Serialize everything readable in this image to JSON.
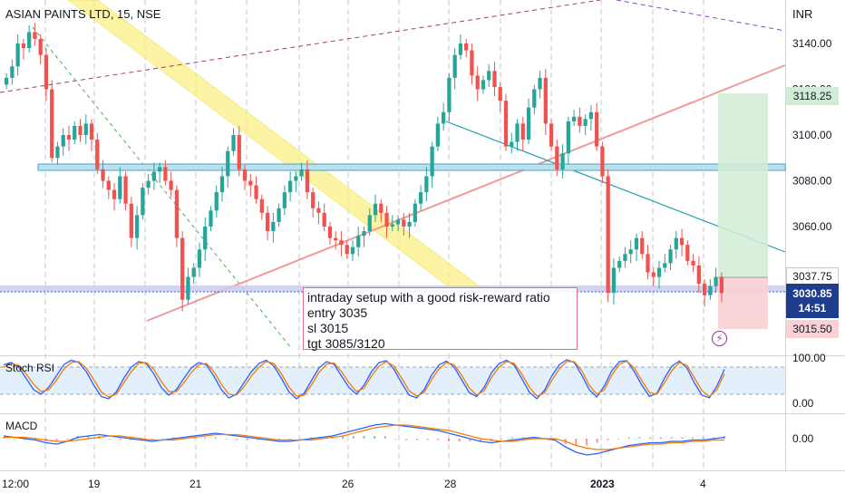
{
  "header": {
    "symbol": "ASIAN PAINTS LTD, 15, NSE",
    "currency": "INR"
  },
  "annotation_note": {
    "lines": [
      "intraday setup with a good risk-reward ratio",
      "entry 3035",
      "sl 3015",
      "tgt 3085/3120"
    ]
  },
  "position_tool": {
    "target_label": "3118.25",
    "entry_label": "3037.75",
    "last_price_label": "3030.85",
    "countdown_label": "14:51",
    "stop_label": "3015.50",
    "target_color": "#d1ecd6",
    "stop_color": "#f9d0d4",
    "last_price_color": "#1e3d8f"
  },
  "alert_icon": "lightning-icon",
  "chart_data": [
    {
      "type": "candlestick",
      "title": "ASIAN PAINTS LTD, 15, NSE",
      "ylabel": "INR",
      "ylim": [
        3002,
        3152
      ],
      "yticks": [
        3140,
        3120,
        3100,
        3080,
        3060
      ],
      "ytick_labels": [
        "3140.00",
        "3120.00",
        "3100.00",
        "3080.00",
        "3060.00"
      ],
      "xticks": [
        "12:00",
        "19",
        "21",
        "26",
        "28",
        "2023",
        "4"
      ],
      "grid": "vertical dashed",
      "series": [
        {
          "name": "",
          "close": [
            3125,
            3130,
            3140,
            3138,
            3145,
            3142,
            3135,
            3120,
            3090,
            3095,
            3100,
            3098,
            3104,
            3100,
            3105,
            3098,
            3085,
            3080,
            3076,
            3072,
            3082,
            3070,
            3055,
            3065,
            3077,
            3080,
            3084,
            3086,
            3080,
            3076,
            3055,
            3028,
            3038,
            3042,
            3050,
            3060,
            3067,
            3075,
            3082,
            3093,
            3100,
            3085,
            3080,
            3078,
            3072,
            3066,
            3058,
            3062,
            3068,
            3075,
            3080,
            3082,
            3085,
            3075,
            3068,
            3066,
            3060,
            3055,
            3054,
            3052,
            3048,
            3051,
            3056,
            3058,
            3065,
            3070,
            3066,
            3060,
            3061,
            3063,
            3060,
            3062,
            3070,
            3075,
            3082,
            3095,
            3105,
            3110,
            3125,
            3135,
            3140,
            3137,
            3126,
            3120,
            3124,
            3128,
            3121,
            3115,
            3095,
            3097,
            3105,
            3098,
            3112,
            3120,
            3125,
            3105,
            3095,
            3085,
            3092,
            3106,
            3108,
            3104,
            3107,
            3110,
            3095,
            3082,
            3031,
            3042,
            3045,
            3048,
            3050,
            3055,
            3048,
            3040,
            3038,
            3042,
            3044,
            3050,
            3055,
            3052,
            3045,
            3043,
            3035,
            3030,
            3034,
            3038,
            3031
          ],
          "high": 3148,
          "low": 3020
        }
      ],
      "levels": [
        {
          "name": "support-zone",
          "values": [
            3029,
            3032
          ]
        },
        {
          "name": "resistance-zone",
          "values": [
            3084,
            3086
          ]
        }
      ],
      "position": {
        "entry": 3037.75,
        "target": 3118.25,
        "stop": 3015.5,
        "last": 3030.85
      }
    },
    {
      "type": "line",
      "title": "Stoch RSI",
      "ylim": [
        0,
        100
      ],
      "yticks": [
        100,
        0
      ],
      "ytick_labels": [
        "100.00",
        "0.00"
      ],
      "band": [
        20,
        80
      ],
      "series": [
        {
          "name": "",
          "color": "#2962ff",
          "values": [
            85,
            90,
            80,
            55,
            30,
            20,
            35,
            60,
            85,
            95,
            90,
            70,
            40,
            15,
            10,
            25,
            55,
            80,
            92,
            88,
            65,
            35,
            18,
            30,
            55,
            78,
            90,
            85,
            60,
            30,
            12,
            20,
            45,
            70,
            88,
            95,
            82,
            55,
            25,
            10,
            22,
            50,
            78,
            92,
            86,
            60,
            35,
            20,
            40,
            70,
            90,
            94,
            75,
            45,
            18,
            12,
            30,
            62,
            85,
            93,
            80,
            52,
            24,
            15,
            35,
            68,
            88,
            95,
            84,
            55,
            25,
            10,
            28,
            60,
            85,
            96,
            90,
            62,
            30,
            14,
            38,
            72,
            92,
            94,
            70,
            40,
            15,
            22,
            55,
            82,
            93,
            78,
            45,
            18,
            12,
            38,
            75
          ]
        },
        {
          "name": "",
          "color": "#f57c00",
          "values": [
            80,
            87,
            84,
            65,
            42,
            26,
            30,
            50,
            75,
            90,
            92,
            78,
            52,
            25,
            14,
            20,
            45,
            70,
            88,
            90,
            75,
            48,
            26,
            26,
            45,
            68,
            85,
            88,
            70,
            42,
            20,
            18,
            36,
            60,
            80,
            92,
            88,
            65,
            36,
            16,
            18,
            40,
            68,
            86,
            89,
            70,
            45,
            26,
            33,
            60,
            82,
            92,
            82,
            56,
            28,
            16,
            24,
            52,
            76,
            90,
            85,
            62,
            34,
            18,
            28,
            58,
            80,
            92,
            88,
            65,
            36,
            16,
            22,
            50,
            76,
            92,
            92,
            72,
            40,
            20,
            30,
            62,
            86,
            93,
            78,
            50,
            24,
            20,
            45,
            72,
            90,
            84,
            56,
            28,
            15,
            30,
            65
          ]
        }
      ]
    },
    {
      "type": "line",
      "title": "MACD",
      "yticks": [
        0
      ],
      "ytick_labels": [
        "0.00"
      ],
      "series": [
        {
          "name": "",
          "color": "#2962ff",
          "values": [
            2,
            1,
            0,
            -1,
            -3,
            -4,
            -2,
            1,
            2,
            3,
            2,
            1,
            0,
            -1,
            -2,
            -1,
            0,
            1,
            2,
            3,
            4,
            3,
            2,
            1,
            0,
            -1,
            -2,
            -2,
            -1,
            0,
            1,
            2,
            4,
            6,
            8,
            10,
            11,
            10,
            9,
            8,
            7,
            6,
            4,
            2,
            0,
            -2,
            -3,
            -2,
            -1,
            0,
            1,
            0,
            -1,
            -6,
            -10,
            -12,
            -11,
            -9,
            -7,
            -5,
            -4,
            -3,
            -3,
            -2,
            -2,
            -1,
            -1,
            0,
            1
          ]
        },
        {
          "name": "",
          "color": "#f57c00",
          "values": [
            1,
            1,
            1,
            0,
            -1,
            -2,
            -2,
            -1,
            0,
            1,
            2,
            2,
            1,
            0,
            -1,
            -1,
            -1,
            0,
            1,
            2,
            3,
            3,
            3,
            2,
            1,
            0,
            -1,
            -1,
            -1,
            -1,
            0,
            1,
            2,
            4,
            6,
            8,
            9,
            10,
            10,
            9,
            8,
            7,
            6,
            4,
            2,
            0,
            -1,
            -2,
            -2,
            -1,
            0,
            0,
            0,
            -2,
            -5,
            -7,
            -8,
            -8,
            -7,
            -6,
            -5,
            -4,
            -4,
            -3,
            -3,
            -2,
            -2,
            -1,
            -1
          ]
        }
      ]
    }
  ]
}
